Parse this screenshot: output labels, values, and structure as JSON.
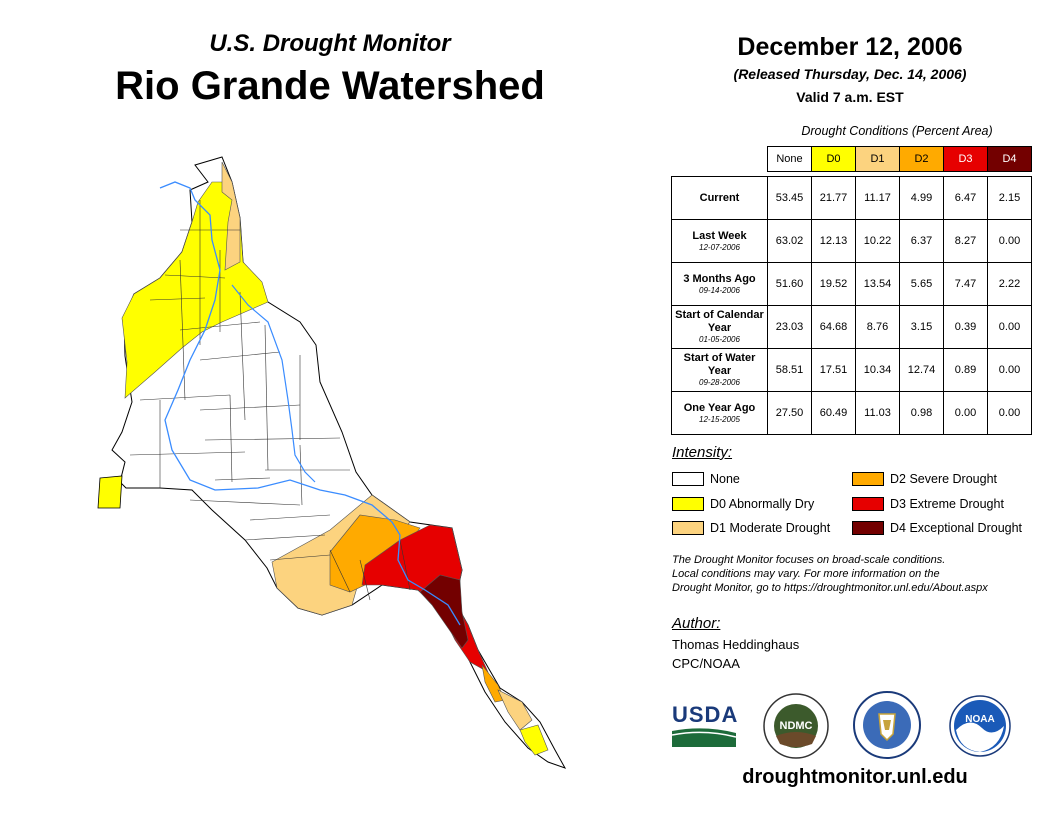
{
  "header": {
    "subtitle": "U.S. Drought Monitor",
    "title": "Rio Grande Watershed",
    "date": "December 12, 2006",
    "released": "(Released Thursday, Dec. 14, 2006)",
    "valid": "Valid 7 a.m. EST"
  },
  "table": {
    "caption": "Drought Conditions (Percent Area)",
    "columns": [
      {
        "label": "None",
        "color": "#ffffff",
        "text_color": "#000000"
      },
      {
        "label": "D0",
        "color": "#ffff00",
        "text_color": "#000000"
      },
      {
        "label": "D1",
        "color": "#fcd37f",
        "text_color": "#000000"
      },
      {
        "label": "D2",
        "color": "#ffaa00",
        "text_color": "#000000"
      },
      {
        "label": "D3",
        "color": "#e60000",
        "text_color": "#ffffff"
      },
      {
        "label": "D4",
        "color": "#730000",
        "text_color": "#ffffff"
      }
    ],
    "rows": [
      {
        "label": "Current",
        "date": "",
        "values": [
          "53.45",
          "21.77",
          "11.17",
          "4.99",
          "6.47",
          "2.15"
        ]
      },
      {
        "label": "Last Week",
        "date": "12-07-2006",
        "values": [
          "63.02",
          "12.13",
          "10.22",
          "6.37",
          "8.27",
          "0.00"
        ]
      },
      {
        "label": "3 Months Ago",
        "date": "09-14-2006",
        "values": [
          "51.60",
          "19.52",
          "13.54",
          "5.65",
          "7.47",
          "2.22"
        ]
      },
      {
        "label": "Start of Calendar Year",
        "date": "01-05-2006",
        "values": [
          "23.03",
          "64.68",
          "8.76",
          "3.15",
          "0.39",
          "0.00"
        ]
      },
      {
        "label": "Start of Water Year",
        "date": "09-28-2006",
        "values": [
          "58.51",
          "17.51",
          "10.34",
          "12.74",
          "0.89",
          "0.00"
        ]
      },
      {
        "label": "One Year Ago",
        "date": "12-15-2005",
        "values": [
          "27.50",
          "60.49",
          "11.03",
          "0.98",
          "0.00",
          "0.00"
        ]
      }
    ]
  },
  "legend": {
    "title": "Intensity:",
    "items": [
      {
        "label": "None",
        "color": "#ffffff"
      },
      {
        "label": "D0 Abnormally Dry",
        "color": "#ffff00"
      },
      {
        "label": "D1 Moderate Drought",
        "color": "#fcd37f"
      },
      {
        "label": "D2 Severe Drought",
        "color": "#ffaa00"
      },
      {
        "label": "D3 Extreme Drought",
        "color": "#e60000"
      },
      {
        "label": "D4 Exceptional Drought",
        "color": "#730000"
      }
    ]
  },
  "note": {
    "line1": "The Drought Monitor focuses on broad-scale conditions.",
    "line2": "Local conditions may vary. For more information on the",
    "line3": "Drought Monitor, go to https://droughtmonitor.unl.edu/About.aspx"
  },
  "author": {
    "title": "Author:",
    "name": "Thomas Heddinghaus",
    "org": "CPC/NOAA"
  },
  "logos": {
    "usda": "USDA",
    "ndmc": "NDMC",
    "noaa": "NOAA"
  },
  "footer": {
    "url": "droughtmonitor.unl.edu"
  }
}
